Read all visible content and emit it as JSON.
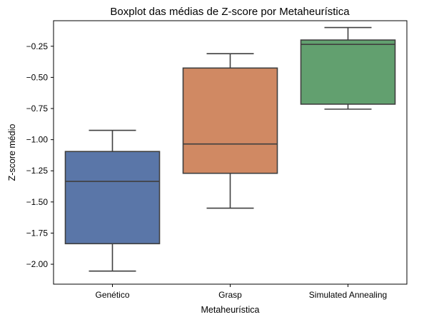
{
  "chart_data": {
    "type": "boxplot",
    "title": "Boxplot das médias de Z-score por Metaheurística",
    "xlabel": "Metaheurística",
    "ylabel": "Z-score médio",
    "categories": [
      "Genético",
      "Grasp",
      "Simulated Annealing"
    ],
    "boxes": [
      {
        "name": "Genético",
        "whisker_low": -2.055,
        "q1": -1.835,
        "median": -1.335,
        "q3": -1.095,
        "whisker_high": -0.925,
        "color": "#5a76a8"
      },
      {
        "name": "Grasp",
        "whisker_low": -1.55,
        "q1": -1.27,
        "median": -1.035,
        "q3": -0.425,
        "whisker_high": -0.31,
        "color": "#d08963"
      },
      {
        "name": "Simulated Annealing",
        "whisker_low": -0.755,
        "q1": -0.715,
        "median": -0.235,
        "q3": -0.2,
        "whisker_high": -0.1,
        "color": "#62a06f"
      }
    ],
    "yticks": [
      -2.0,
      -1.75,
      -1.5,
      -1.25,
      -1.0,
      -0.75,
      -0.5,
      -0.25
    ],
    "ytick_labels": [
      "−2.00",
      "−1.75",
      "−1.50",
      "−1.25",
      "−1.00",
      "−0.75",
      "−0.50",
      "−0.25"
    ],
    "ylim": [
      -2.16,
      -0.045
    ],
    "grid": false,
    "legend": "none",
    "line_color": "#3f3f3f"
  }
}
